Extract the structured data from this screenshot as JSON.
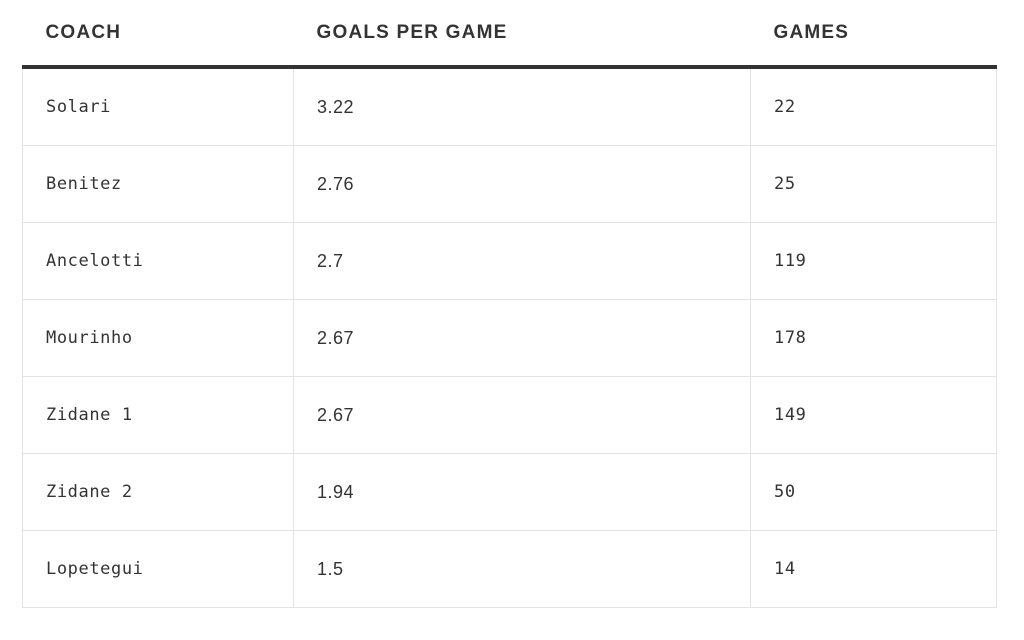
{
  "chart_data": {
    "type": "table",
    "columns": [
      "COACH",
      "GOALS PER GAME",
      "GAMES"
    ],
    "rows": [
      {
        "coach": "Solari",
        "goals_per_game": "3.22",
        "games": "22"
      },
      {
        "coach": "Benitez",
        "goals_per_game": "2.76",
        "games": "25"
      },
      {
        "coach": "Ancelotti",
        "goals_per_game": "2.7",
        "games": "119"
      },
      {
        "coach": "Mourinho",
        "goals_per_game": "2.67",
        "games": "178"
      },
      {
        "coach": "Zidane 1",
        "goals_per_game": "2.67",
        "games": "149"
      },
      {
        "coach": "Zidane 2",
        "goals_per_game": "1.94",
        "games": "50"
      },
      {
        "coach": "Lopetegui",
        "goals_per_game": "1.5",
        "games": "14"
      }
    ]
  },
  "colors": {
    "text": "#333333",
    "header_rule": "#333333",
    "grid": "#e3e3e3",
    "background": "#ffffff"
  }
}
